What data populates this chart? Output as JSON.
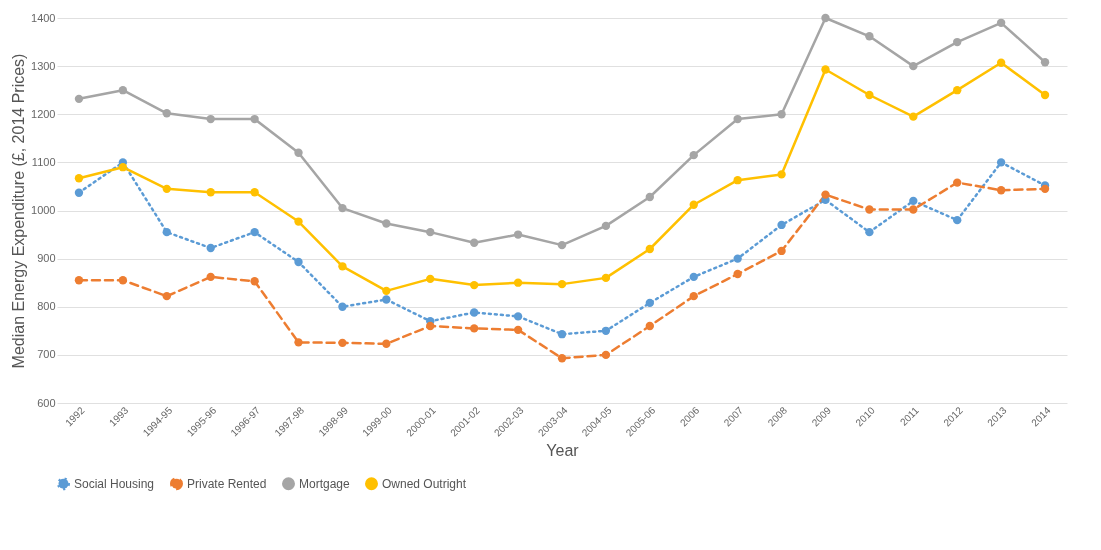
{
  "chart_data": {
    "type": "line",
    "xlabel": "Year",
    "ylabel": "Median Energy Expenditure (£, 2014 Prices)",
    "categories": [
      "1992",
      "1993",
      "1994-95",
      "1995-96",
      "1996-97",
      "1997-98",
      "1998-99",
      "1999-00",
      "2000-01",
      "2001-02",
      "2002-03",
      "2003-04",
      "2004-05",
      "2005-06",
      "2006",
      "2007",
      "2008",
      "2009",
      "2010",
      "2011",
      "2012",
      "2013",
      "2014"
    ],
    "series": [
      {
        "name": "Social Housing",
        "color": "#5b9bd5",
        "line_style": "dotted",
        "values": [
          1037,
          1100,
          955,
          922,
          955,
          893,
          800,
          815,
          770,
          788,
          780,
          743,
          750,
          808,
          862,
          900,
          970,
          1022,
          955,
          1020,
          980,
          1100,
          1052
        ]
      },
      {
        "name": "Private Rented",
        "color": "#ed7d31",
        "line_style": "dashed",
        "values": [
          855,
          855,
          822,
          862,
          853,
          726,
          725,
          723,
          760,
          755,
          752,
          693,
          700,
          760,
          822,
          868,
          916,
          1033,
          1002,
          1002,
          1058,
          1042,
          1045
        ]
      },
      {
        "name": "Mortgage",
        "color": "#a5a5a5",
        "line_style": "solid",
        "values": [
          1232,
          1250,
          1202,
          1190,
          1190,
          1120,
          1005,
          973,
          955,
          933,
          950,
          928,
          968,
          1028,
          1115,
          1190,
          1200,
          1400,
          1362,
          1300,
          1350,
          1390,
          1308
        ]
      },
      {
        "name": "Owned Outright",
        "color": "#ffc000",
        "line_style": "solid",
        "values": [
          1067,
          1090,
          1045,
          1038,
          1038,
          977,
          884,
          833,
          858,
          845,
          850,
          847,
          860,
          920,
          1012,
          1063,
          1075,
          1293,
          1240,
          1195,
          1250,
          1307,
          1240
        ]
      }
    ],
    "ylim": [
      600,
      1400
    ],
    "yticks": [
      600,
      700,
      800,
      900,
      1000,
      1100,
      1200,
      1300,
      1400
    ],
    "grid": "y",
    "legend": "bottom",
    "marker": "circle"
  }
}
